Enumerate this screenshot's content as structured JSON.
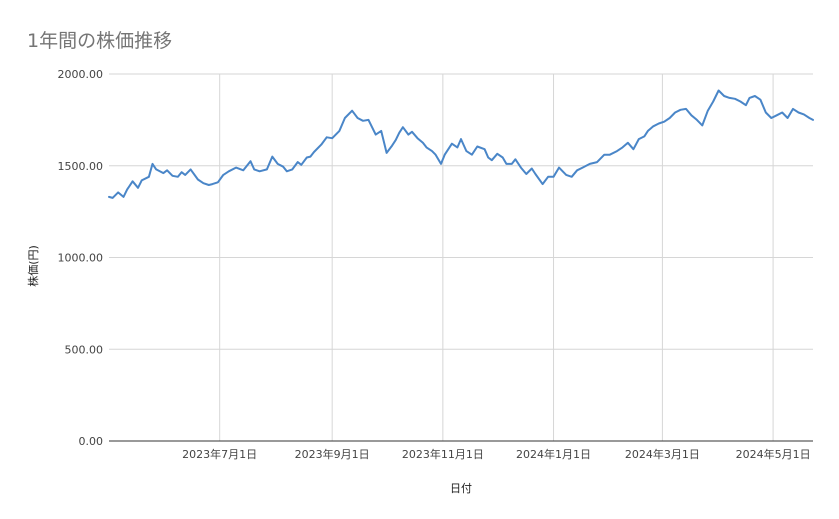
{
  "chart_data": {
    "type": "line",
    "title": "1年間の株価推移",
    "xlabel": "日付",
    "ylabel": "株価(円)",
    "ylim": [
      0,
      2000
    ],
    "yticks": [
      "0.00",
      "500.00",
      "1000.00",
      "1500.00",
      "2000.00"
    ],
    "xlim": [
      "2023-05-01",
      "2024-05-23"
    ],
    "xticks": [
      {
        "label": "2023年7月1日",
        "date": "2023-07-01"
      },
      {
        "label": "2023年9月1日",
        "date": "2023-09-01"
      },
      {
        "label": "2023年11月1日",
        "date": "2023-11-01"
      },
      {
        "label": "2024年1月1日",
        "date": "2024-01-01"
      },
      {
        "label": "2024年3月1日",
        "date": "2024-03-01"
      },
      {
        "label": "2024年5月1日",
        "date": "2024-05-01"
      }
    ],
    "grid": true,
    "legend": "none",
    "series": [
      {
        "color": "#4a86c8",
        "x": [
          "2023-05-01",
          "2023-05-03",
          "2023-05-06",
          "2023-05-09",
          "2023-05-11",
          "2023-05-14",
          "2023-05-17",
          "2023-05-19",
          "2023-05-23",
          "2023-05-25",
          "2023-05-27",
          "2023-05-31",
          "2023-06-02",
          "2023-06-05",
          "2023-06-08",
          "2023-06-10",
          "2023-06-12",
          "2023-06-15",
          "2023-06-19",
          "2023-06-22",
          "2023-06-25",
          "2023-06-27",
          "2023-06-30",
          "2023-07-03",
          "2023-07-06",
          "2023-07-10",
          "2023-07-14",
          "2023-07-18",
          "2023-07-20",
          "2023-07-23",
          "2023-07-27",
          "2023-07-30",
          "2023-08-02",
          "2023-08-05",
          "2023-08-07",
          "2023-08-10",
          "2023-08-13",
          "2023-08-15",
          "2023-08-18",
          "2023-08-20",
          "2023-08-22",
          "2023-08-26",
          "2023-08-29",
          "2023-09-01",
          "2023-09-05",
          "2023-09-08",
          "2023-09-12",
          "2023-09-15",
          "2023-09-18",
          "2023-09-21",
          "2023-09-25",
          "2023-09-28",
          "2023-10-01",
          "2023-10-04",
          "2023-10-06",
          "2023-10-08",
          "2023-10-10",
          "2023-10-13",
          "2023-10-15",
          "2023-10-18",
          "2023-10-21",
          "2023-10-23",
          "2023-10-26",
          "2023-10-28",
          "2023-10-31",
          "2023-11-02",
          "2023-11-06",
          "2023-11-09",
          "2023-11-11",
          "2023-11-14",
          "2023-11-17",
          "2023-11-20",
          "2023-11-24",
          "2023-11-26",
          "2023-11-28",
          "2023-12-01",
          "2023-12-04",
          "2023-12-06",
          "2023-12-09",
          "2023-12-11",
          "2023-12-14",
          "2023-12-17",
          "2023-12-20",
          "2023-12-22",
          "2023-12-26",
          "2023-12-29",
          "2024-01-01",
          "2024-01-04",
          "2024-01-08",
          "2024-01-11",
          "2024-01-14",
          "2024-01-17",
          "2024-01-21",
          "2024-01-25",
          "2024-01-29",
          "2024-02-01",
          "2024-02-05",
          "2024-02-08",
          "2024-02-11",
          "2024-02-14",
          "2024-02-17",
          "2024-02-20",
          "2024-02-22",
          "2024-02-25",
          "2024-02-28",
          "2024-03-02",
          "2024-03-05",
          "2024-03-08",
          "2024-03-11",
          "2024-03-14",
          "2024-03-17",
          "2024-03-20",
          "2024-03-23",
          "2024-03-26",
          "2024-03-29",
          "2024-04-01",
          "2024-04-04",
          "2024-04-07",
          "2024-04-10",
          "2024-04-13",
          "2024-04-16",
          "2024-04-18",
          "2024-04-21",
          "2024-04-24",
          "2024-04-27",
          "2024-04-30",
          "2024-05-03",
          "2024-05-06",
          "2024-05-09",
          "2024-05-12",
          "2024-05-15",
          "2024-05-18",
          "2024-05-21",
          "2024-05-23"
        ],
        "y": [
          1330,
          1325,
          1355,
          1330,
          1370,
          1415,
          1380,
          1420,
          1440,
          1510,
          1480,
          1460,
          1475,
          1445,
          1440,
          1465,
          1450,
          1480,
          1425,
          1405,
          1395,
          1400,
          1410,
          1450,
          1470,
          1490,
          1475,
          1525,
          1480,
          1470,
          1480,
          1550,
          1510,
          1495,
          1470,
          1480,
          1520,
          1505,
          1545,
          1550,
          1575,
          1615,
          1655,
          1650,
          1690,
          1760,
          1800,
          1760,
          1745,
          1750,
          1670,
          1690,
          1570,
          1610,
          1640,
          1680,
          1710,
          1670,
          1685,
          1650,
          1625,
          1600,
          1580,
          1560,
          1510,
          1560,
          1620,
          1600,
          1645,
          1580,
          1560,
          1605,
          1590,
          1545,
          1530,
          1565,
          1545,
          1510,
          1510,
          1535,
          1490,
          1455,
          1485,
          1455,
          1400,
          1440,
          1440,
          1490,
          1450,
          1440,
          1475,
          1490,
          1510,
          1520,
          1560,
          1560,
          1580,
          1600,
          1625,
          1590,
          1645,
          1660,
          1690,
          1715,
          1730,
          1740,
          1760,
          1790,
          1805,
          1810,
          1775,
          1750,
          1720,
          1800,
          1850,
          1910,
          1880,
          1870,
          1865,
          1850,
          1830,
          1870,
          1880,
          1860,
          1790,
          1760,
          1775,
          1790,
          1760,
          1810,
          1790,
          1780,
          1760,
          1750
        ]
      }
    ]
  }
}
